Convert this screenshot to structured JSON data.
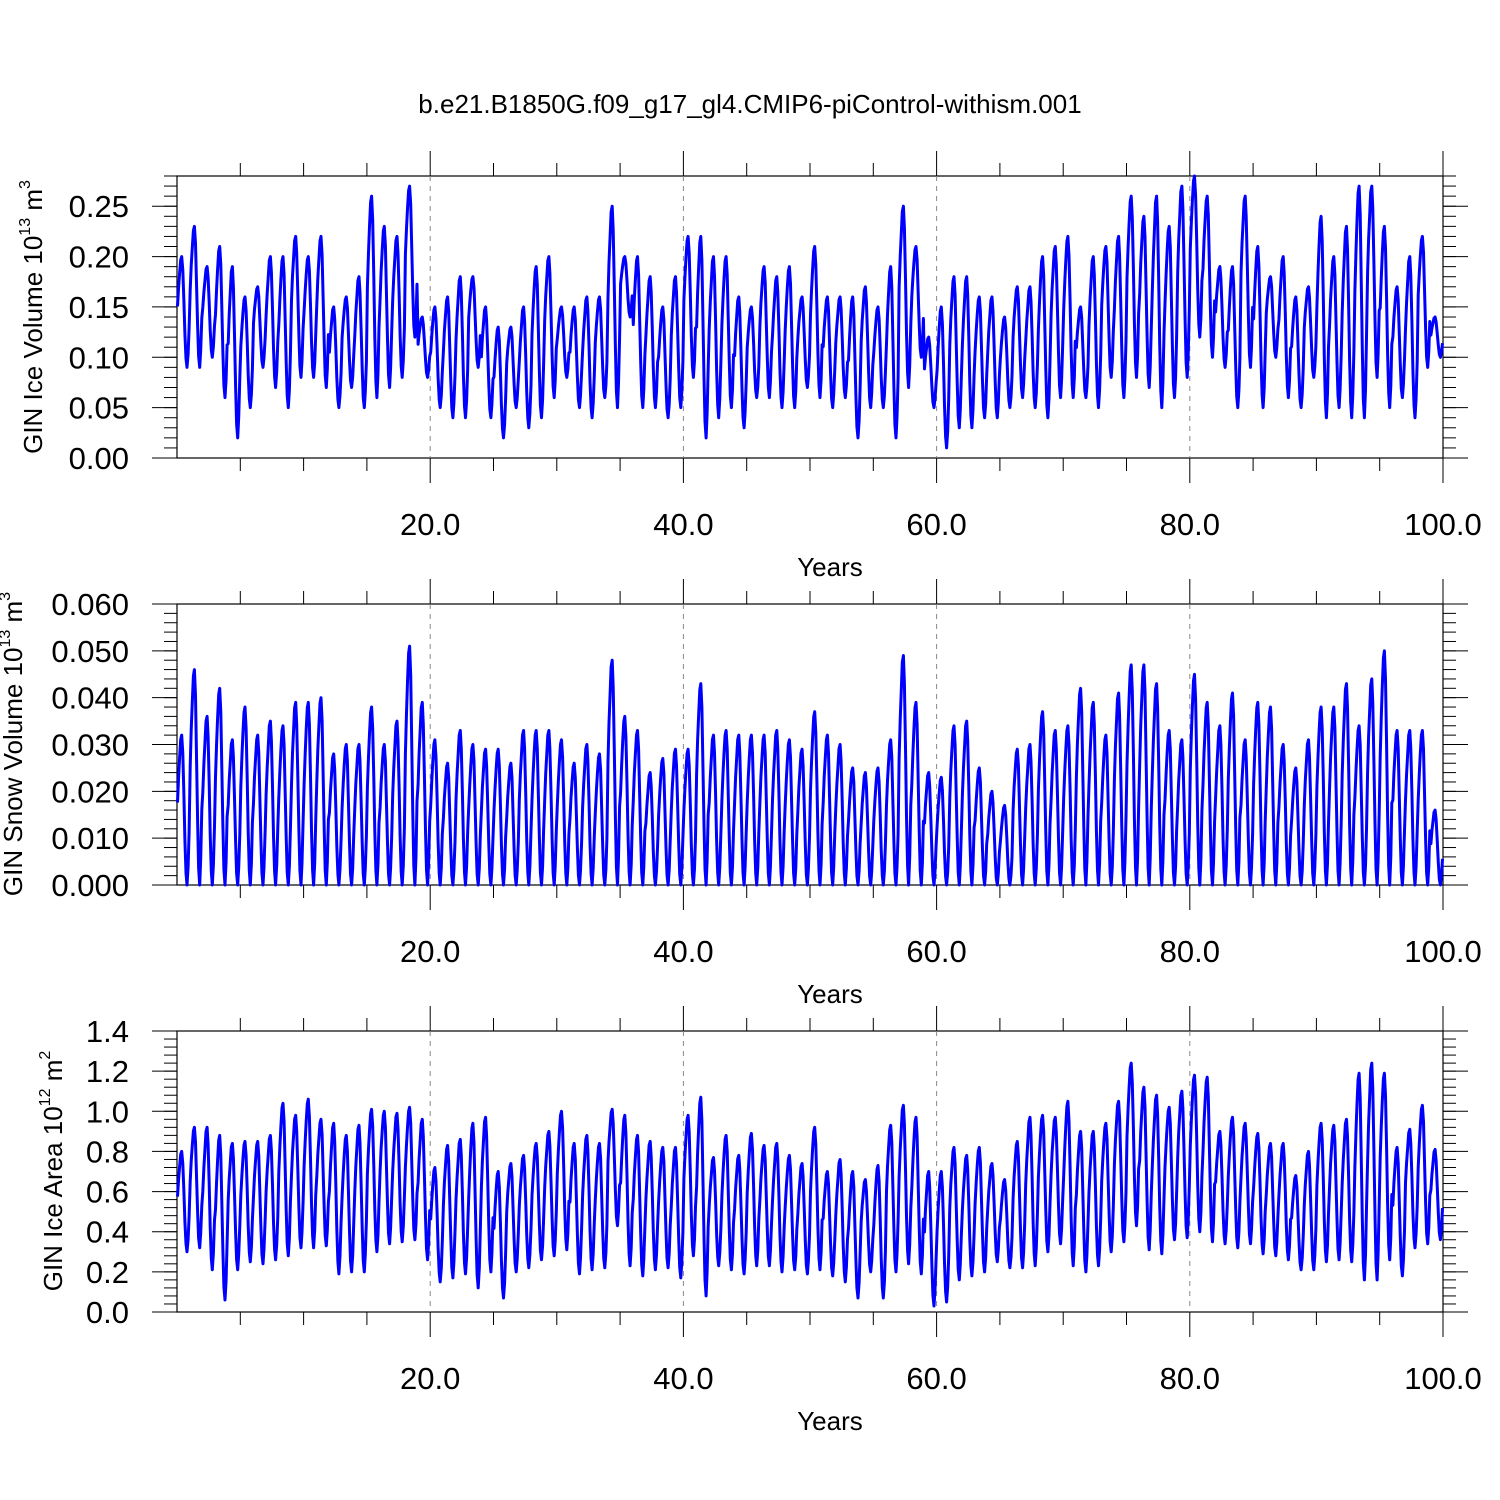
{
  "title": "b.e21.B1850G.f09_g17_gl4.CMIP6-piControl-withism.001",
  "colors": {
    "series": "#0000ff",
    "axes": "#000000",
    "grid": "#888888"
  },
  "chart_data": [
    {
      "type": "line",
      "xlabel": "Years",
      "ylabel": {
        "main": "GIN Ice Volume 10",
        "sup": "13",
        "unit": " m",
        "unit_sup": "3"
      },
      "xlim": [
        0.0,
        100.0
      ],
      "ylim": [
        0.0,
        0.28
      ],
      "xticks": [
        "20.0",
        "40.0",
        "60.0",
        "80.0",
        "100.0"
      ],
      "yticks": [
        "0.00",
        "0.05",
        "0.10",
        "0.15",
        "0.20",
        "0.25"
      ],
      "grid": "dashed vertical lines at major x ticks",
      "series": [
        {
          "x_start": 0.0417,
          "x_step": 1.0,
          "annual_max": [
            0.2,
            0.23,
            0.19,
            0.21,
            0.19,
            0.16,
            0.17,
            0.2,
            0.2,
            0.22,
            0.2,
            0.22,
            0.15,
            0.16,
            0.18,
            0.26,
            0.23,
            0.22,
            0.27,
            0.14,
            0.15,
            0.16,
            0.18,
            0.18,
            0.15,
            0.13,
            0.13,
            0.15,
            0.19,
            0.2,
            0.15,
            0.15,
            0.16,
            0.16,
            0.25,
            0.2,
            0.2,
            0.18,
            0.15,
            0.18,
            0.22,
            0.22,
            0.2,
            0.2,
            0.16,
            0.15,
            0.19,
            0.18,
            0.19,
            0.16,
            0.21,
            0.16,
            0.16,
            0.16,
            0.17,
            0.15,
            0.19,
            0.25,
            0.21,
            0.12,
            0.15,
            0.18,
            0.18,
            0.16,
            0.16,
            0.14,
            0.17,
            0.17,
            0.2,
            0.21,
            0.22,
            0.15,
            0.2,
            0.21,
            0.22,
            0.26,
            0.24,
            0.26,
            0.23,
            0.27,
            0.28,
            0.26,
            0.19,
            0.19,
            0.26,
            0.21,
            0.18,
            0.2,
            0.16,
            0.17,
            0.24,
            0.2,
            0.23,
            0.27,
            0.27,
            0.23,
            0.17,
            0.2,
            0.22,
            0.14
          ],
          "annual_min": [
            0.09,
            0.09,
            0.1,
            0.06,
            0.02,
            0.05,
            0.09,
            0.07,
            0.05,
            0.08,
            0.08,
            0.07,
            0.05,
            0.07,
            0.05,
            0.06,
            0.07,
            0.08,
            0.12,
            0.08,
            0.05,
            0.04,
            0.04,
            0.09,
            0.04,
            0.02,
            0.05,
            0.03,
            0.04,
            0.06,
            0.08,
            0.05,
            0.04,
            0.06,
            0.05,
            0.14,
            0.05,
            0.05,
            0.04,
            0.05,
            0.08,
            0.02,
            0.04,
            0.05,
            0.03,
            0.06,
            0.06,
            0.05,
            0.05,
            0.07,
            0.06,
            0.05,
            0.06,
            0.02,
            0.05,
            0.05,
            0.02,
            0.07,
            0.1,
            0.05,
            0.01,
            0.03,
            0.03,
            0.04,
            0.04,
            0.05,
            0.06,
            0.05,
            0.04,
            0.06,
            0.06,
            0.06,
            0.05,
            0.08,
            0.06,
            0.08,
            0.07,
            0.05,
            0.06,
            0.08,
            0.12,
            0.1,
            0.09,
            0.05,
            0.09,
            0.05,
            0.1,
            0.06,
            0.05,
            0.08,
            0.04,
            0.05,
            0.04,
            0.04,
            0.08,
            0.05,
            0.06,
            0.04,
            0.09,
            0.1
          ]
        }
      ]
    },
    {
      "type": "line",
      "xlabel": "Years",
      "ylabel": {
        "main": "GIN Snow Volume 10",
        "sup": "13",
        "unit": " m",
        "unit_sup": "3"
      },
      "xlim": [
        0.0,
        100.0
      ],
      "ylim": [
        0.0,
        0.06
      ],
      "xticks": [
        "20.0",
        "40.0",
        "60.0",
        "80.0",
        "100.0"
      ],
      "yticks": [
        "0.000",
        "0.010",
        "0.020",
        "0.030",
        "0.040",
        "0.050",
        "0.060"
      ],
      "grid": "dashed vertical lines at major x ticks",
      "series": [
        {
          "x_start": 0.0417,
          "x_step": 1.0,
          "annual_max": [
            0.032,
            0.046,
            0.036,
            0.042,
            0.031,
            0.038,
            0.032,
            0.035,
            0.034,
            0.039,
            0.039,
            0.04,
            0.028,
            0.03,
            0.03,
            0.038,
            0.03,
            0.035,
            0.051,
            0.039,
            0.031,
            0.026,
            0.033,
            0.03,
            0.029,
            0.029,
            0.026,
            0.033,
            0.033,
            0.033,
            0.031,
            0.026,
            0.03,
            0.028,
            0.048,
            0.036,
            0.033,
            0.024,
            0.027,
            0.029,
            0.029,
            0.043,
            0.032,
            0.033,
            0.032,
            0.032,
            0.032,
            0.033,
            0.031,
            0.029,
            0.037,
            0.032,
            0.03,
            0.025,
            0.024,
            0.025,
            0.031,
            0.049,
            0.039,
            0.024,
            0.023,
            0.034,
            0.035,
            0.025,
            0.02,
            0.017,
            0.029,
            0.03,
            0.037,
            0.033,
            0.034,
            0.042,
            0.039,
            0.032,
            0.041,
            0.047,
            0.047,
            0.043,
            0.033,
            0.031,
            0.045,
            0.039,
            0.034,
            0.041,
            0.031,
            0.039,
            0.038,
            0.03,
            0.025,
            0.031,
            0.038,
            0.038,
            0.043,
            0.034,
            0.044,
            0.05,
            0.033,
            0.033,
            0.033,
            0.016
          ],
          "annual_min": [
            0.0,
            0.0,
            0.0,
            0.0,
            0.0,
            0.0,
            0.0,
            0.0,
            0.0,
            0.0,
            0.0,
            0.0,
            0.0,
            0.0,
            0.0,
            0.0,
            0.0,
            0.0,
            0.0,
            0.0,
            0.0,
            0.0,
            0.0,
            0.0,
            0.0,
            0.0,
            0.0,
            0.0,
            0.0,
            0.0,
            0.0,
            0.0,
            0.0,
            0.0,
            0.0,
            0.0,
            0.0,
            0.0,
            0.0,
            0.0,
            0.0,
            0.0,
            0.0,
            0.0,
            0.0,
            0.0,
            0.0,
            0.0,
            0.0,
            0.0,
            0.0,
            0.0,
            0.0,
            0.0,
            0.0,
            0.0,
            0.0,
            0.0,
            0.0,
            0.0,
            0.0,
            0.0,
            0.0,
            0.0,
            0.0,
            0.0,
            0.0,
            0.0,
            0.0,
            0.0,
            0.0,
            0.0,
            0.0,
            0.0,
            0.0,
            0.0,
            0.0,
            0.0,
            0.0,
            0.0,
            0.0,
            0.0,
            0.0,
            0.0,
            0.0,
            0.0,
            0.0,
            0.0,
            0.0,
            0.0,
            0.0,
            0.0,
            0.0,
            0.0,
            0.0,
            0.0,
            0.0,
            0.0,
            0.0,
            0.0
          ]
        }
      ]
    },
    {
      "type": "line",
      "xlabel": "Years",
      "ylabel": {
        "main": "GIN Ice Area 10",
        "sup": "12",
        "unit": " m",
        "unit_sup": "2"
      },
      "xlim": [
        0.0,
        100.0
      ],
      "ylim": [
        0.0,
        1.4
      ],
      "xticks": [
        "20.0",
        "40.0",
        "60.0",
        "80.0",
        "100.0"
      ],
      "yticks": [
        "0.0",
        "0.2",
        "0.4",
        "0.6",
        "0.8",
        "1.0",
        "1.2",
        "1.4"
      ],
      "grid": "dashed vertical lines at major x ticks",
      "series": [
        {
          "x_start": 0.0417,
          "x_step": 1.0,
          "annual_max": [
            0.8,
            0.92,
            0.92,
            0.88,
            0.84,
            0.85,
            0.85,
            0.88,
            1.04,
            0.98,
            1.06,
            0.96,
            0.94,
            0.88,
            0.93,
            1.01,
            1.0,
            0.99,
            1.02,
            0.96,
            0.72,
            0.83,
            0.86,
            0.94,
            0.97,
            0.7,
            0.74,
            0.78,
            0.84,
            0.9,
            1.0,
            0.84,
            0.88,
            0.84,
            1.01,
            0.98,
            0.88,
            0.85,
            0.82,
            0.82,
            0.98,
            1.07,
            0.77,
            0.88,
            0.78,
            0.89,
            0.83,
            0.84,
            0.78,
            0.74,
            0.92,
            0.7,
            0.76,
            0.7,
            0.66,
            0.73,
            0.93,
            1.03,
            0.97,
            0.7,
            0.7,
            0.82,
            0.78,
            0.82,
            0.74,
            0.66,
            0.85,
            0.97,
            0.98,
            0.97,
            1.05,
            0.9,
            0.9,
            0.94,
            1.05,
            1.24,
            1.12,
            1.08,
            1.02,
            1.1,
            1.18,
            1.17,
            0.9,
            0.97,
            0.94,
            0.89,
            0.84,
            0.84,
            0.68,
            0.8,
            0.94,
            0.93,
            0.96,
            1.19,
            1.24,
            1.19,
            0.82,
            0.91,
            1.03,
            0.81
          ],
          "annual_min": [
            0.3,
            0.32,
            0.21,
            0.06,
            0.21,
            0.25,
            0.24,
            0.26,
            0.28,
            0.32,
            0.32,
            0.33,
            0.19,
            0.2,
            0.2,
            0.3,
            0.34,
            0.35,
            0.36,
            0.26,
            0.15,
            0.17,
            0.19,
            0.12,
            0.2,
            0.07,
            0.2,
            0.22,
            0.26,
            0.28,
            0.31,
            0.19,
            0.21,
            0.22,
            0.43,
            0.23,
            0.18,
            0.21,
            0.22,
            0.17,
            0.28,
            0.08,
            0.23,
            0.21,
            0.19,
            0.23,
            0.23,
            0.2,
            0.21,
            0.19,
            0.21,
            0.18,
            0.15,
            0.07,
            0.2,
            0.07,
            0.2,
            0.24,
            0.19,
            0.03,
            0.05,
            0.16,
            0.18,
            0.2,
            0.25,
            0.22,
            0.22,
            0.23,
            0.3,
            0.34,
            0.23,
            0.2,
            0.23,
            0.3,
            0.35,
            0.43,
            0.31,
            0.29,
            0.36,
            0.37,
            0.4,
            0.35,
            0.34,
            0.32,
            0.34,
            0.29,
            0.28,
            0.26,
            0.21,
            0.21,
            0.25,
            0.26,
            0.25,
            0.16,
            0.16,
            0.26,
            0.18,
            0.32,
            0.34,
            0.36
          ]
        }
      ]
    }
  ]
}
